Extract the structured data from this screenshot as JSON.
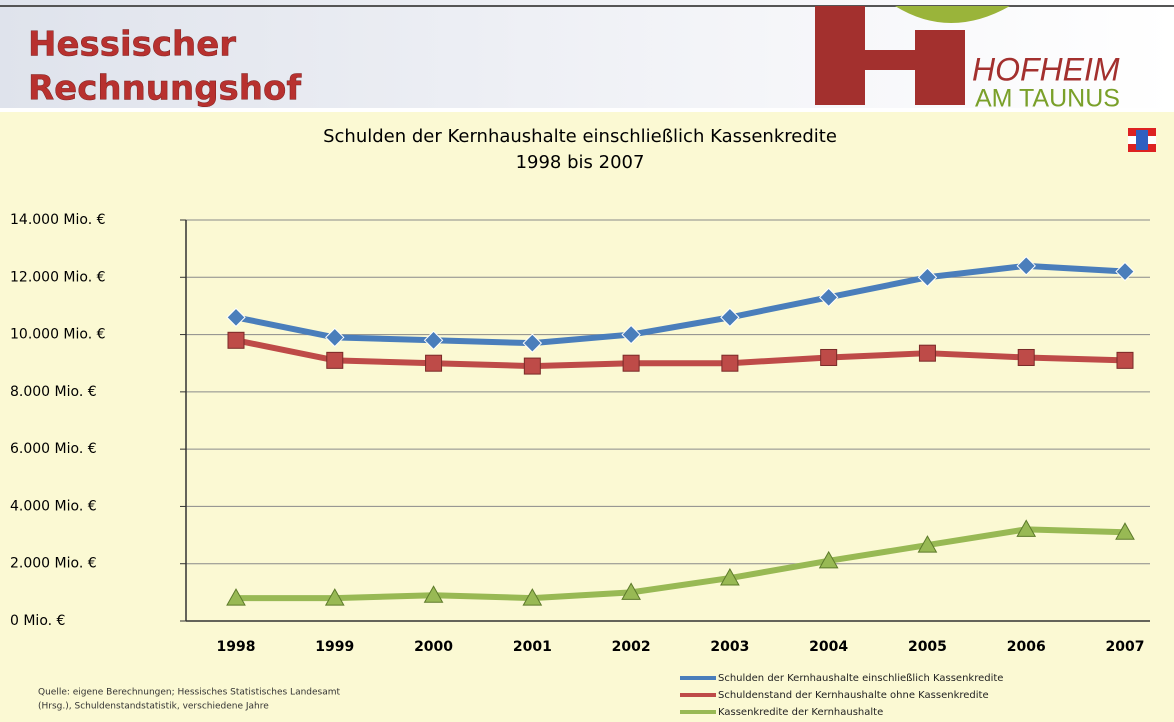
{
  "header": {
    "title_line1": "Hessischer",
    "title_line2": "Rechnungshof",
    "logo_line1": "HOFHEIM",
    "logo_line2": "AM TAUNUS"
  },
  "source": {
    "line1": "Quelle: eigene Berechnungen; Hessisches Statistisches Landesamt",
    "line2": "(Hrsg.), Schuldenstandstatistik, verschiedene Jahre"
  },
  "chart_data": {
    "type": "line",
    "title": "Schulden der Kernhaushalte einschließlich Kassenkredite",
    "subtitle": "1998 bis 2007",
    "categories": [
      "1998",
      "1999",
      "2000",
      "2001",
      "2002",
      "2003",
      "2004",
      "2005",
      "2006",
      "2007"
    ],
    "series": [
      {
        "name": "Schulden der Kernhaushalte einschließlich Kassenkredite",
        "color": "#4a7ebb",
        "marker": "diamond",
        "values": [
          10600,
          9900,
          9800,
          9700,
          10000,
          10600,
          11300,
          12000,
          12400,
          12200
        ]
      },
      {
        "name": "Schuldenstand der Kernhaushalte ohne Kassenkredite",
        "color": "#be4b48",
        "marker": "square",
        "values": [
          9800,
          9100,
          9000,
          8900,
          9000,
          9000,
          9200,
          9350,
          9200,
          9100
        ]
      },
      {
        "name": "Kassenkredite der Kernhaushalte",
        "color": "#98b954",
        "marker": "triangle",
        "values": [
          800,
          800,
          900,
          800,
          1000,
          1500,
          2100,
          2650,
          3200,
          3100
        ]
      }
    ],
    "ylim": [
      0,
      14000
    ],
    "yticks": [
      {
        "value": 0,
        "label": "0 Mio. €"
      },
      {
        "value": 2000,
        "label": "2.000 Mio. €"
      },
      {
        "value": 4000,
        "label": "4.000 Mio. €"
      },
      {
        "value": 6000,
        "label": "6.000 Mio. €"
      },
      {
        "value": 8000,
        "label": "8.000 Mio. €"
      },
      {
        "value": 10000,
        "label": "10.000 Mio. €"
      },
      {
        "value": 12000,
        "label": "12.000 Mio. €"
      },
      {
        "value": 14000,
        "label": "14.000 Mio. €"
      }
    ],
    "grid": true,
    "legend": "bottom-right"
  }
}
